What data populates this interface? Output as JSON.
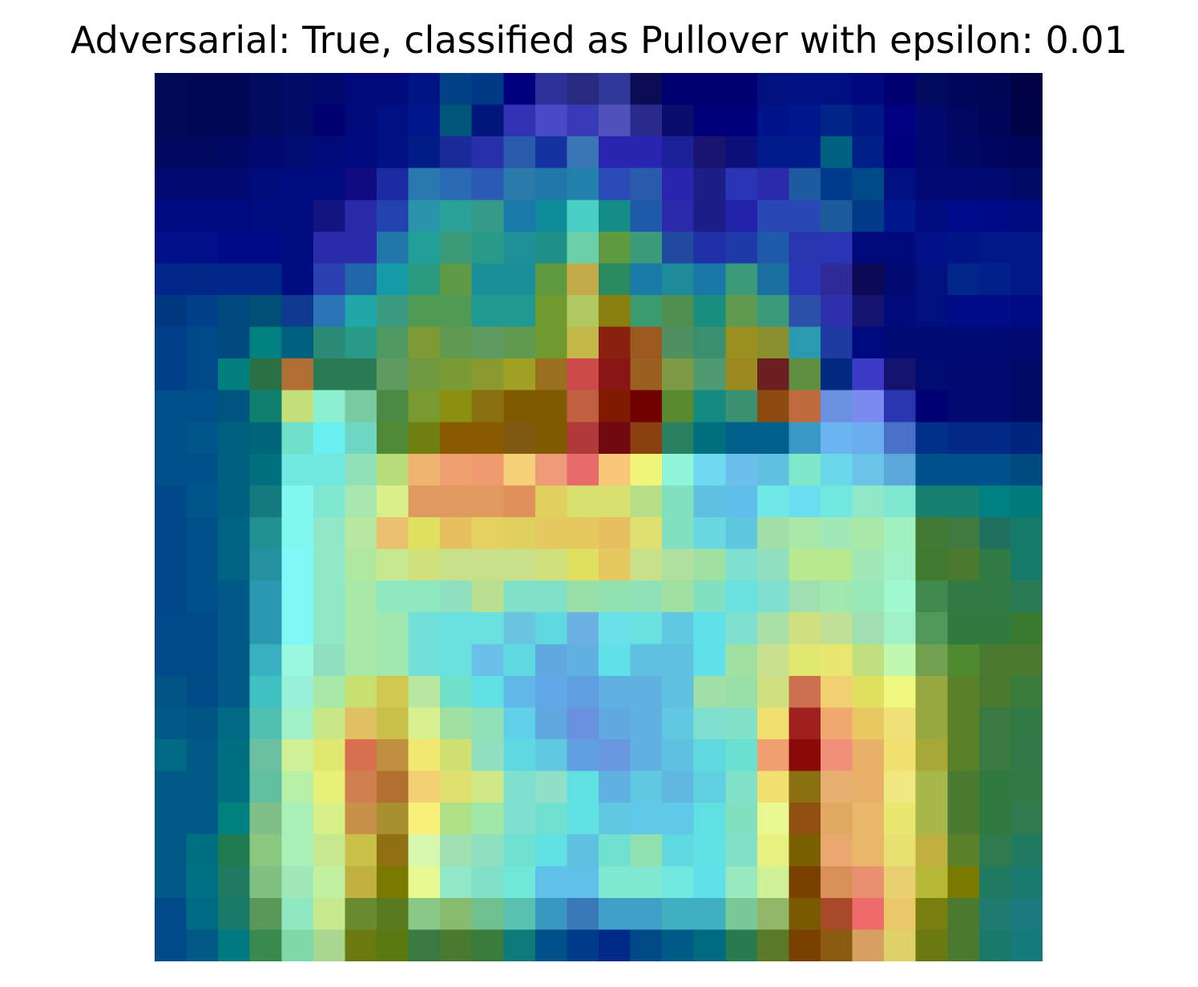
{
  "title": "Adversarial: True, classified as Pullover with epsilon: 0.01",
  "image_grid": {
    "rows": 28,
    "cols": 28,
    "pixels": [
      [
        "#000a55",
        "#000855",
        "#000755",
        "#000a5e",
        "#000c65",
        "#00086b",
        "#000a78",
        "#000a7a",
        "#001483",
        "#004285",
        "#003a85",
        "#00007f",
        "#2c3099",
        "#282a80",
        "#2f3899",
        "#0c0c55",
        "#000070",
        "#000070",
        "#000070",
        "#00107f",
        "#001080",
        "#001080",
        "#00087f",
        "#000070",
        "#000a5e",
        "#000758",
        "#000656",
        "#000245"
      ],
      [
        "#000a55",
        "#000855",
        "#000855",
        "#000a5e",
        "#000c65",
        "#000070",
        "#000a78",
        "#000f82",
        "#00168d",
        "#005679",
        "#00167a",
        "#3232b5",
        "#4a4ac7",
        "#393ab5",
        "#5052ba",
        "#2a2a8c",
        "#0a0d6b",
        "#00007a",
        "#00007a",
        "#00128a",
        "#00168d",
        "#002588",
        "#001885",
        "#000080",
        "#000a6e",
        "#000760",
        "#000558",
        "#000248"
      ],
      [
        "#000860",
        "#000860",
        "#000866",
        "#000a6e",
        "#000c72",
        "#000a78",
        "#000a7f",
        "#001082",
        "#001d85",
        "#1a2a99",
        "#2730a8",
        "#2a5aaa",
        "#1533a0",
        "#3a75b5",
        "#2a25b0",
        "#2a25b0",
        "#1d2199",
        "#181470",
        "#0d0f78",
        "#001c8c",
        "#001c8c",
        "#006080",
        "#002088",
        "#00007f",
        "#000a6e",
        "#000866",
        "#000660",
        "#000558"
      ],
      [
        "#000a70",
        "#000a70",
        "#000a70",
        "#000c7a",
        "#000c7f",
        "#000c7f",
        "#100c80",
        "#1a2aa0",
        "#2a78b0",
        "#2a6ab5",
        "#2a5ab5",
        "#2a7aaa",
        "#2277aa",
        "#2280aa",
        "#2a4ab5",
        "#2a5aaa",
        "#2a25b0",
        "#1d1e85",
        "#2a35b5",
        "#2a2aaa",
        "#1d5aa0",
        "#003a8c",
        "#004a88",
        "#001080",
        "#000a72",
        "#000a72",
        "#000a70",
        "#000a66"
      ],
      [
        "#000a80",
        "#000a80",
        "#000a80",
        "#000c80",
        "#000c80",
        "#141480",
        "#2a2aa8",
        "#2242b0",
        "#2a95aa",
        "#2aa29a",
        "#359a88",
        "#1a7aaa",
        "#0e8c9a",
        "#4acfc4",
        "#148c88",
        "#1f5aaa",
        "#2a2aaa",
        "#1d1e85",
        "#2222aa",
        "#2a48b5",
        "#2a48b5",
        "#1d5a9a",
        "#003a88",
        "#00168c",
        "#000c80",
        "#000a8a",
        "#000a88",
        "#000a80"
      ],
      [
        "#001088",
        "#001088",
        "#000a88",
        "#000a88",
        "#000d80",
        "#2a2aaa",
        "#2a2aaa",
        "#2277aa",
        "#22a098",
        "#3a9a78",
        "#2a9a88",
        "#1f9098",
        "#1f9088",
        "#6ad0aa",
        "#5f9a40",
        "#3a9a7a",
        "#1f4aa0",
        "#2230a8",
        "#1f3aa8",
        "#1f5aaa",
        "#2a35b0",
        "#2a35b5",
        "#000a7a",
        "#000a7a",
        "#001088",
        "#001488",
        "#001888",
        "#001888"
      ],
      [
        "#00268a",
        "#002888",
        "#00288a",
        "#00288a",
        "#000d80",
        "#2a40b0",
        "#2066a8",
        "#159ba8",
        "#2a9a80",
        "#5f9a45",
        "#1a8f9a",
        "#1a8f9a",
        "#5f9a40",
        "#c4ab4a",
        "#2a8a60",
        "#1a7aa8",
        "#1f8a9a",
        "#1a78a8",
        "#3a9a7a",
        "#1a70a0",
        "#2a35b5",
        "#2f2a99",
        "#0d0a55",
        "#000a70",
        "#00107f",
        "#00268a",
        "#00208a",
        "#001888"
      ],
      [
        "#00387f",
        "#00408a",
        "#004a80",
        "#005075",
        "#0f3a8f",
        "#2a75b5",
        "#20a8a8",
        "#3a9a80",
        "#4f9a55",
        "#4f9a55",
        "#209a90",
        "#209a90",
        "#6f9a30",
        "#b0c860",
        "#8a8010",
        "#3a9a70",
        "#4f8f50",
        "#1a8f80",
        "#5f9a50",
        "#3a9a7a",
        "#2a50aa",
        "#2d30aa",
        "#141470",
        "#000a7a",
        "#00107f",
        "#000c88",
        "#000c88",
        "#000a85"
      ],
      [
        "#00408a",
        "#004a8a",
        "#004a80",
        "#00807f",
        "#006080",
        "#2a8a75",
        "#2a9a88",
        "#4f9a60",
        "#7f9a35",
        "#5f9a50",
        "#5f9a60",
        "#5f9a50",
        "#6f9a30",
        "#c4b84a",
        "#8a2010",
        "#9a5a20",
        "#4f8f60",
        "#3a8f70",
        "#9a9020",
        "#8a9030",
        "#2a9ab0",
        "#1f3aa0",
        "#000a80",
        "#000a75",
        "#000a75",
        "#000a75",
        "#000a75",
        "#000a70"
      ],
      [
        "#00408a",
        "#004a8a",
        "#007f7f",
        "#2a7045",
        "#b07035",
        "#2a7a55",
        "#2a7a55",
        "#5f9a60",
        "#6f9a40",
        "#7a9a35",
        "#8a9a30",
        "#a0a025",
        "#9a7020",
        "#cc4a4a",
        "#8a1515",
        "#9a6020",
        "#7f9a45",
        "#4f9a70",
        "#9a8a20",
        "#6a2020",
        "#5f8f40",
        "#002a80",
        "#3a3ac5",
        "#141470",
        "#000c70",
        "#000a70",
        "#000a70",
        "#000a65"
      ],
      [
        "#00508a",
        "#00508a",
        "#005580",
        "#0f7f70",
        "#c4de7a",
        "#8af0d0",
        "#7acaa0",
        "#4a8a45",
        "#7a9a30",
        "#8a9010",
        "#8a7010",
        "#805a00",
        "#805a00",
        "#c06040",
        "#801a00",
        "#700000",
        "#5a8a30",
        "#158a80",
        "#3a9070",
        "#8a4a10",
        "#c06a40",
        "#6a90e0",
        "#7a8aef",
        "#2a35b0",
        "#000075",
        "#000a70",
        "#000a70",
        "#000a65"
      ],
      [
        "#00508a",
        "#00558a",
        "#006080",
        "#006578",
        "#70e0c8",
        "#6af0f0",
        "#70d6c4",
        "#4f8a35",
        "#6f8010",
        "#8a5a00",
        "#8a5a00",
        "#805a10",
        "#805a00",
        "#b03a3a",
        "#700a10",
        "#8a4010",
        "#2a8060",
        "#00707f",
        "#00608a",
        "#00608a",
        "#3a9ac4",
        "#6ab5ef",
        "#6aaeef",
        "#4a70c8",
        "#00308a",
        "#002a85",
        "#002a85",
        "#00257f"
      ],
      [
        "#00508a",
        "#00508a",
        "#006080",
        "#00707f",
        "#70e8e0",
        "#70e8e0",
        "#90e0b8",
        "#b8dc7a",
        "#efb570",
        "#efa070",
        "#ef9a70",
        "#f5d078",
        "#ef9a78",
        "#e86a6a",
        "#f8c878",
        "#eff578",
        "#90f5d8",
        "#70d8f0",
        "#6ac0ea",
        "#5fc0e0",
        "#80e8c8",
        "#6ad8e8",
        "#6ac4ea",
        "#5aa8d8",
        "#00508a",
        "#00508a",
        "#00508a",
        "#004a80"
      ],
      [
        "#00488a",
        "#00558a",
        "#006080",
        "#157a80",
        "#80f8f0",
        "#80e8d0",
        "#a8e8b0",
        "#d8ef8a",
        "#e09a60",
        "#e09a60",
        "#e09a60",
        "#e0905a",
        "#e0d060",
        "#d8e070",
        "#d8e070",
        "#b8de8a",
        "#80e0c0",
        "#5fc0e0",
        "#5fbeea",
        "#70e8e8",
        "#6adef0",
        "#70e8e0",
        "#90e8c8",
        "#80e8d0",
        "#158070",
        "#158070",
        "#008080",
        "#007a7a"
      ],
      [
        "#00488a",
        "#00508a",
        "#006585",
        "#209090",
        "#80f8f0",
        "#90e8c8",
        "#b8e8a0",
        "#e8c070",
        "#e0e060",
        "#e6c060",
        "#e6d060",
        "#e0d060",
        "#e6c860",
        "#e6c860",
        "#e6c060",
        "#e0e070",
        "#80e0c0",
        "#6ad8e0",
        "#5fc8e0",
        "#a0e0a8",
        "#a8e8a8",
        "#a0e8b8",
        "#a8e8a8",
        "#a0f0c0",
        "#407a35",
        "#407a40",
        "#207060",
        "#157a6a"
      ],
      [
        "#00488a",
        "#00508a",
        "#006585",
        "#2590a0",
        "#80f8f8",
        "#90e8c8",
        "#b0e8a0",
        "#c8e890",
        "#d0e07a",
        "#c8e08a",
        "#c8e08a",
        "#c8e08a",
        "#d0e07a",
        "#e0e060",
        "#e6c860",
        "#c8e08a",
        "#b0e0a0",
        "#a0e0a0",
        "#80e0d0",
        "#90e0c0",
        "#b8e890",
        "#b8e890",
        "#a0e8b8",
        "#a0f0c8",
        "#407a30",
        "#4a7a30",
        "#307a45",
        "#157a6a"
      ],
      [
        "#00488a",
        "#00508a",
        "#005a85",
        "#2a98b0",
        "#80f8f8",
        "#90e8c8",
        "#a8e8a8",
        "#90e8c0",
        "#90e8c0",
        "#90e0c0",
        "#b8e090",
        "#80e0c8",
        "#80e0c8",
        "#98e0a8",
        "#90e0b0",
        "#90e0b8",
        "#a0e0a0",
        "#80e0c0",
        "#6ae0e0",
        "#80e0d0",
        "#a0e0b0",
        "#a0e8b0",
        "#98e8b8",
        "#a0f8d0",
        "#408a50",
        "#2f7a45",
        "#307a45",
        "#2a7a55"
      ],
      [
        "#004a8a",
        "#004a8a",
        "#005a85",
        "#2a98b0",
        "#80f8f8",
        "#90e8c8",
        "#a8e8a8",
        "#a0e8b0",
        "#70e0d8",
        "#6ae0e0",
        "#6ae0e0",
        "#6ac4e0",
        "#60d8e0",
        "#6ab0e0",
        "#6ae0e8",
        "#6ae0e0",
        "#60c8e0",
        "#60e0e8",
        "#80e0d0",
        "#a8e0a8",
        "#d0e080",
        "#c0e098",
        "#a0e0b0",
        "#a0f0c8",
        "#50985a",
        "#307a40",
        "#307a40",
        "#3a7a30"
      ],
      [
        "#004a8a",
        "#004a8a",
        "#005a85",
        "#38b0c0",
        "#98f8e0",
        "#90e0c0",
        "#a8e8a8",
        "#a0e8b0",
        "#70e0d8",
        "#6ae0e0",
        "#6ac0e8",
        "#60d8e0",
        "#60a8e0",
        "#60b0e0",
        "#60e0e8",
        "#60c0e0",
        "#60c0e0",
        "#60e0e8",
        "#a0e0a0",
        "#c8e090",
        "#e0e870",
        "#e8e870",
        "#c0e080",
        "#c0f8b0",
        "#70a050",
        "#508a30",
        "#4a7a30",
        "#4a7a30"
      ],
      [
        "#005585",
        "#004a85",
        "#005a85",
        "#40c0c0",
        "#98f0d8",
        "#a8e8a8",
        "#c8e070",
        "#d0c850",
        "#b8e8a0",
        "#70e0c8",
        "#60e0e0",
        "#60b8e8",
        "#60a8e8",
        "#60a0e0",
        "#60b0e0",
        "#60b0e0",
        "#60c0e0",
        "#a0e0a8",
        "#98e0a8",
        "#d0e080",
        "#cc7050",
        "#f0d070",
        "#e0e060",
        "#f0f880",
        "#98a840",
        "#5a802a",
        "#4a7a30",
        "#3a7a3a"
      ],
      [
        "#005a85",
        "#005585",
        "#006a85",
        "#50c0b0",
        "#a0f0c8",
        "#c8e888",
        "#e0c060",
        "#c8c048",
        "#d8f090",
        "#a0e0a0",
        "#90e0b8",
        "#60d0e8",
        "#60a8e0",
        "#6a90e0",
        "#60a8e0",
        "#60b0e0",
        "#60c8e0",
        "#80e0d0",
        "#80e0c8",
        "#f0e070",
        "#a02020",
        "#f0a870",
        "#e8c860",
        "#f0e078",
        "#98a840",
        "#5a802a",
        "#3a7a40",
        "#307a45"
      ],
      [
        "#006a85",
        "#005a85",
        "#007080",
        "#6ac0a0",
        "#d0f098",
        "#e0e870",
        "#d87050",
        "#c09040",
        "#f0e870",
        "#d0e070",
        "#90e0c0",
        "#60d8e0",
        "#60c8e0",
        "#60a0e0",
        "#6a98e0",
        "#60b0e0",
        "#60c0e0",
        "#60d8e0",
        "#6ae0d0",
        "#f0a070",
        "#8a0a0a",
        "#f0907a",
        "#e8b068",
        "#f0e070",
        "#a8a838",
        "#5a802a",
        "#3a7a40",
        "#307a4a"
      ],
      [
        "#005a85",
        "#005a85",
        "#007080",
        "#60c0a0",
        "#b8f0a8",
        "#e8f078",
        "#d08050",
        "#b07030",
        "#f0d070",
        "#e0e070",
        "#d0e888",
        "#80e0d0",
        "#90e0c8",
        "#60e0e0",
        "#60b0e0",
        "#60c8e0",
        "#60b8e0",
        "#60d0e0",
        "#80e0c8",
        "#f0e070",
        "#8a7010",
        "#e8b070",
        "#e8b068",
        "#f0e880",
        "#a8b848",
        "#4a7a30",
        "#307a40",
        "#307a45"
      ],
      [
        "#005a85",
        "#005a85",
        "#00807f",
        "#80c088",
        "#a8f0b8",
        "#d8f088",
        "#c89048",
        "#a89030",
        "#f8f078",
        "#b0e088",
        "#a0e8a8",
        "#80e0d0",
        "#70e0d0",
        "#60e0e0",
        "#60c8e0",
        "#60c8e8",
        "#60c8e8",
        "#60e0e0",
        "#80e0c0",
        "#e8f890",
        "#905010",
        "#e0a860",
        "#e8b868",
        "#e8e870",
        "#a8b848",
        "#4a7a30",
        "#307a40",
        "#307a50"
      ],
      [
        "#005a85",
        "#007080",
        "#207a50",
        "#8ac880",
        "#a8f0b8",
        "#c8e890",
        "#c8c048",
        "#907010",
        "#d8f8b0",
        "#a0e0b0",
        "#90e0c0",
        "#70e0d0",
        "#60e0e0",
        "#60c0e0",
        "#70e0d0",
        "#90e0b0",
        "#60d8e0",
        "#60e0e0",
        "#80e0c8",
        "#e8f080",
        "#7a6000",
        "#e8a870",
        "#e8b868",
        "#e8e070",
        "#c0b040",
        "#5a802a",
        "#307a50",
        "#207a60"
      ],
      [
        "#005a85",
        "#007085",
        "#207a60",
        "#80c080",
        "#a0e8b8",
        "#c0f0a0",
        "#c0b040",
        "#7a7a00",
        "#e8f890",
        "#90e8c8",
        "#80e0c8",
        "#70e8d8",
        "#60c0e8",
        "#60c0e8",
        "#80e8d0",
        "#80e8d0",
        "#70e8e0",
        "#60e0e8",
        "#98e8c0",
        "#d0f098",
        "#7a4000",
        "#d89058",
        "#e89070",
        "#e8d070",
        "#b8b838",
        "#7a7a00",
        "#207a60",
        "#1a7a70"
      ],
      [
        "#004a8a",
        "#006a85",
        "#1a7a6a",
        "#5a985a",
        "#90e8c0",
        "#c8e890",
        "#6a8a30",
        "#5a7a20",
        "#8ac888",
        "#88bb70",
        "#70c090",
        "#5ac0b0",
        "#3a98c0",
        "#3a78b8",
        "#40a0c8",
        "#40a0c8",
        "#40b0c0",
        "#40b0c0",
        "#7ac898",
        "#90b868",
        "#7a5a00",
        "#a84a2a",
        "#ef6a6a",
        "#e8c868",
        "#7a8010",
        "#4a7a30",
        "#207a70",
        "#1a7a80"
      ],
      [
        "#004a8a",
        "#005a85",
        "#007a80",
        "#3a8a50",
        "#80d8a8",
        "#a8d890",
        "#6a7a10",
        "#5a7a10",
        "#3a7a40",
        "#4a7a30",
        "#3a7a3a",
        "#0f7a7a",
        "#00508a",
        "#003a8a",
        "#002a88",
        "#004a88",
        "#005a88",
        "#006a80",
        "#2a7a50",
        "#5a7a2a",
        "#7a4000",
        "#8a5a10",
        "#d8a060",
        "#e0d068",
        "#6a7a10",
        "#4a7a30",
        "#1a7a6a",
        "#157a7a"
      ]
    ]
  }
}
